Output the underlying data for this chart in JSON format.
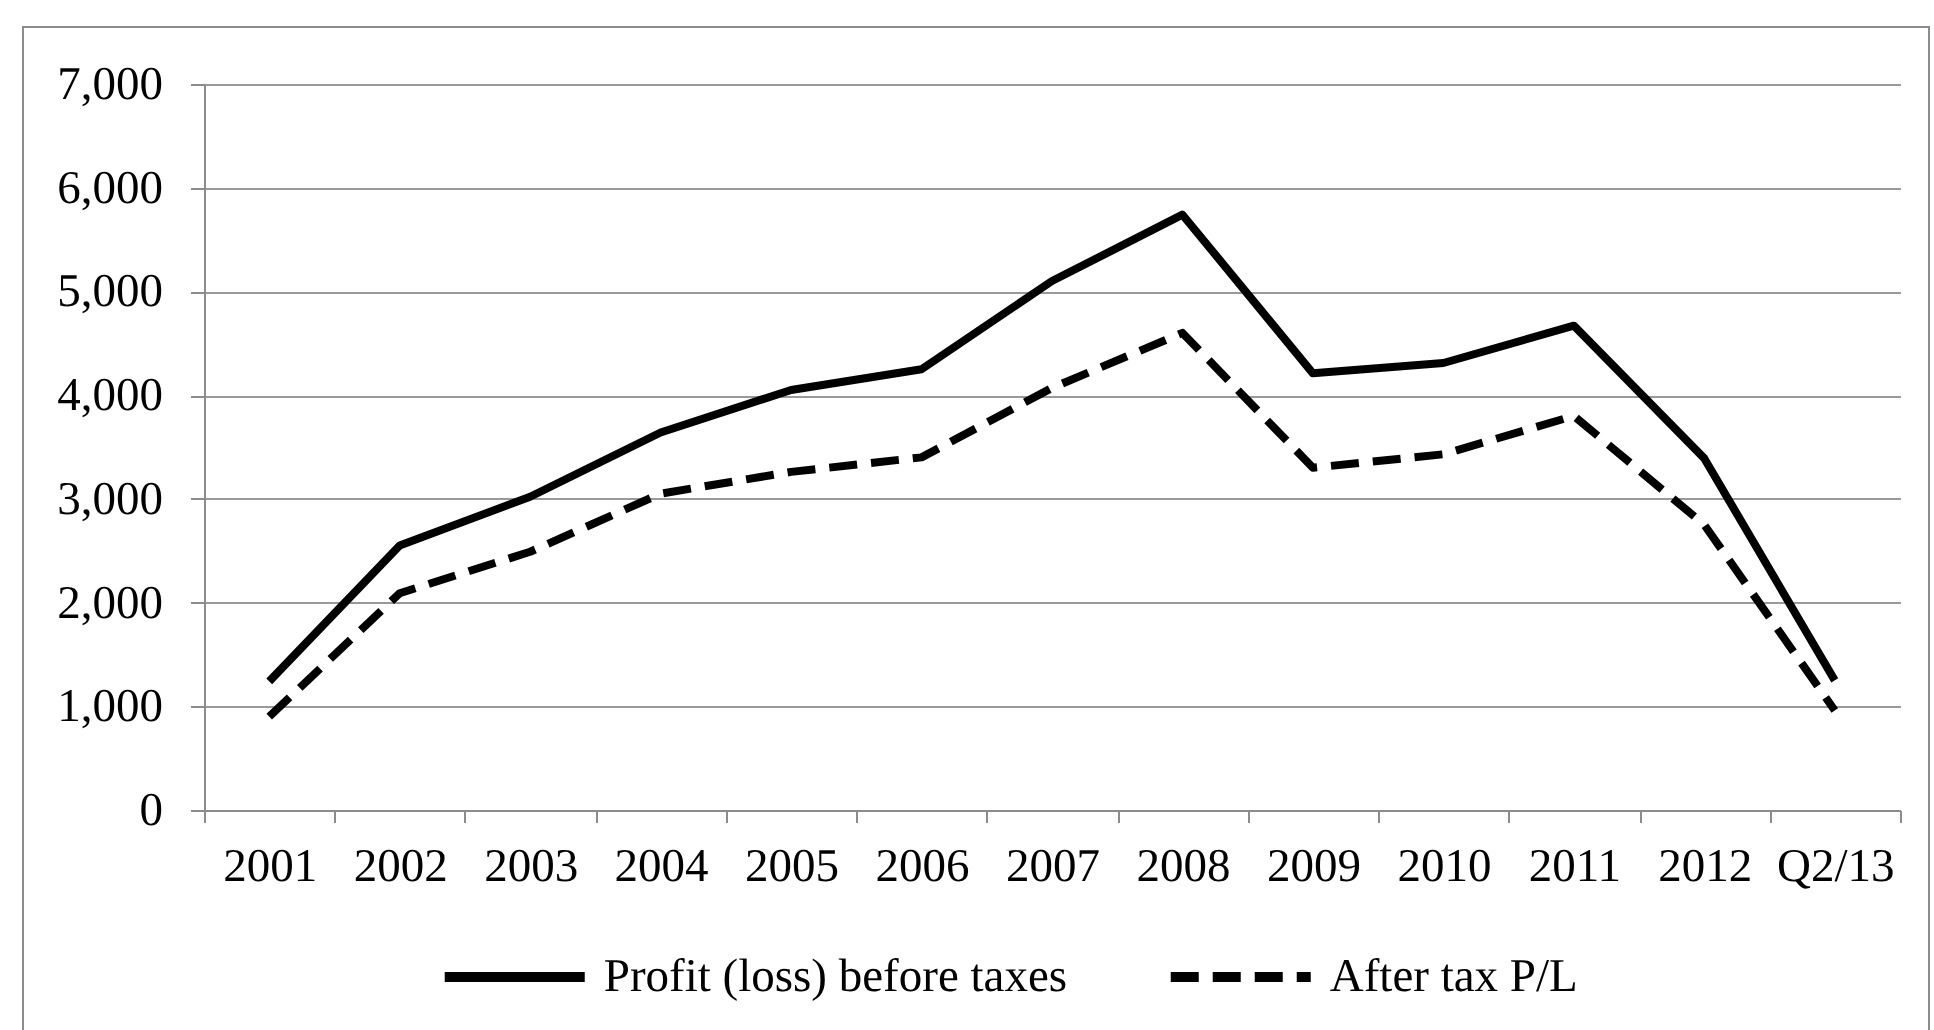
{
  "chart_data": {
    "type": "line",
    "categories": [
      "2001",
      "2002",
      "2003",
      "2004",
      "2005",
      "2006",
      "2007",
      "2008",
      "2009",
      "2010",
      "2011",
      "2012",
      "Q2/13"
    ],
    "series": [
      {
        "name": "Profit (loss) before taxes",
        "color": "#000000",
        "line_style": "solid",
        "values": [
          1240,
          2550,
          3020,
          3640,
          4050,
          4250,
          5100,
          5740,
          4210,
          4310,
          4670,
          3390,
          1250
        ]
      },
      {
        "name": "After tax P/L",
        "color": "#000000",
        "line_style": "dashed",
        "values": [
          900,
          2090,
          2490,
          3050,
          3260,
          3400,
          4070,
          4600,
          3300,
          3430,
          3800,
          2750,
          960
        ]
      }
    ],
    "ylim": [
      0,
      7000
    ],
    "yticks": [
      0,
      {
        "value": 1000,
        "label": "1,000"
      },
      {
        "value": 2000,
        "label": "2,000"
      },
      {
        "value": 3000,
        "label": "3,000"
      },
      {
        "value": 4000,
        "label": "4,000"
      },
      {
        "value": 5000,
        "label": "5,000"
      },
      {
        "value": 6000,
        "label": "6,000"
      },
      {
        "value": 7000,
        "label": "7,000"
      }
    ],
    "grid": "y",
    "legend": "bottom"
  }
}
